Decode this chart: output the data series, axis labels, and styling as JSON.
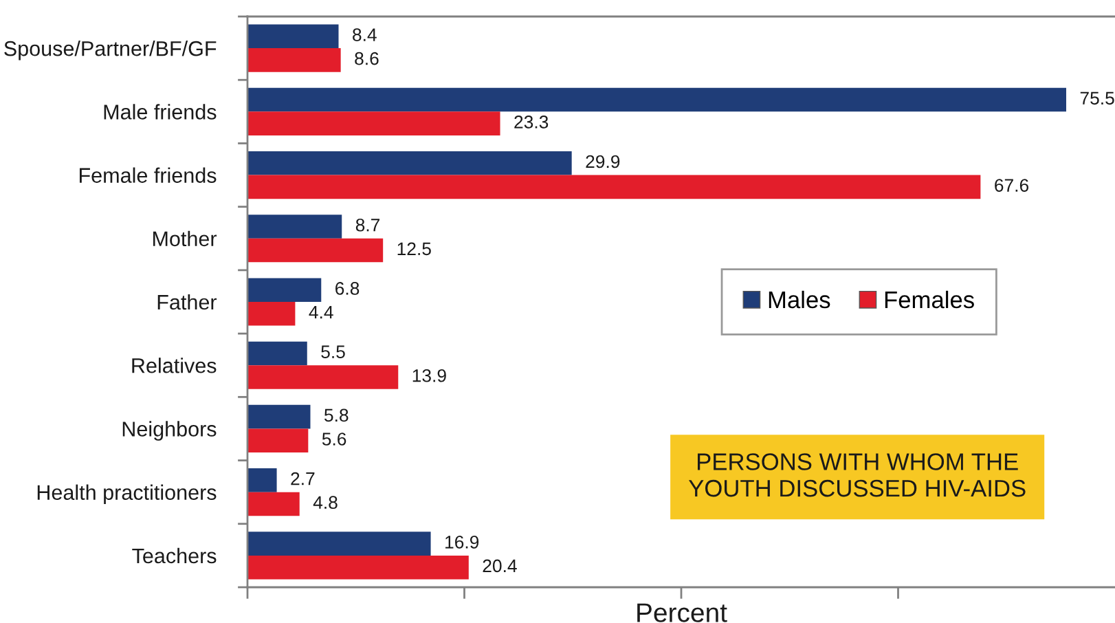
{
  "chart_data": {
    "type": "bar",
    "orientation": "horizontal",
    "title": "PERSONS WITH WHOM THE YOUTH DISCUSSED HIV-AIDS",
    "xlabel": "Percent",
    "categories": [
      "Spouse/Partner/BF/GF",
      "Male friends",
      "Female friends",
      "Mother",
      "Father",
      "Relatives",
      "Neighbors",
      "Health practitioners",
      "Teachers"
    ],
    "series": [
      {
        "name": "Males",
        "color": "#1f3d78",
        "values": [
          8.4,
          75.5,
          29.9,
          8.7,
          6.8,
          5.5,
          5.8,
          2.7,
          16.9
        ]
      },
      {
        "name": "Females",
        "color": "#e31e2b",
        "values": [
          8.6,
          23.3,
          67.6,
          12.5,
          4.4,
          13.9,
          5.6,
          4.8,
          20.4
        ]
      }
    ],
    "xlim": [
      0,
      80
    ],
    "xticks": [
      {
        "value": 0,
        "label": null
      },
      {
        "value": 20,
        "label": null
      },
      {
        "value": 40,
        "label": null
      },
      {
        "value": 60,
        "label": null
      }
    ],
    "tick_labels": "y",
    "data_labels": true,
    "legend": "right"
  }
}
